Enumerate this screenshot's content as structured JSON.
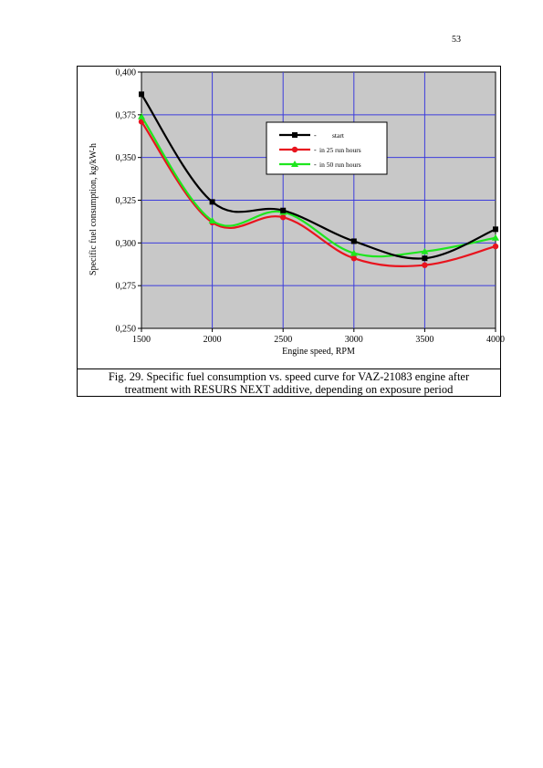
{
  "page_number": "53",
  "caption": {
    "line1": "Fig. 29. Specific fuel consumption vs. speed curve for VAZ-21083 engine after",
    "line2": "treatment with RESURS NEXT additive, depending on exposure period"
  },
  "chart_data": {
    "type": "line",
    "title": "",
    "xlabel": "Engine speed, RPM",
    "ylabel": "Specific fuel consumption, kg/kW-h",
    "x": [
      1500,
      2000,
      2500,
      3000,
      3500,
      4000
    ],
    "xticks": [
      "1500",
      "2000",
      "2500",
      "3000",
      "3500",
      "4000"
    ],
    "yticks": [
      "0,250",
      "0,275",
      "0,300",
      "0,325",
      "0,350",
      "0,375",
      "0,400"
    ],
    "xlim": [
      1500,
      4000
    ],
    "ylim": [
      0.25,
      0.4
    ],
    "grid": true,
    "legend_position": "top-right",
    "series": [
      {
        "name": "start",
        "marker": "square",
        "color": "#000000",
        "values": [
          0.387,
          0.324,
          0.319,
          0.301,
          0.291,
          0.308
        ]
      },
      {
        "name": "in 25 run hours",
        "marker": "circle",
        "color": "#e8141e",
        "values": [
          0.371,
          0.312,
          0.315,
          0.291,
          0.287,
          0.298
        ]
      },
      {
        "name": "in 50 run hours",
        "marker": "triangle",
        "color": "#1ee61e",
        "values": [
          0.374,
          0.313,
          0.318,
          0.294,
          0.295,
          0.303
        ]
      }
    ],
    "colors": {
      "plot_background": "#c8c8c8",
      "grid": "#3c3cdc",
      "legend_background": "#ffffff"
    }
  }
}
